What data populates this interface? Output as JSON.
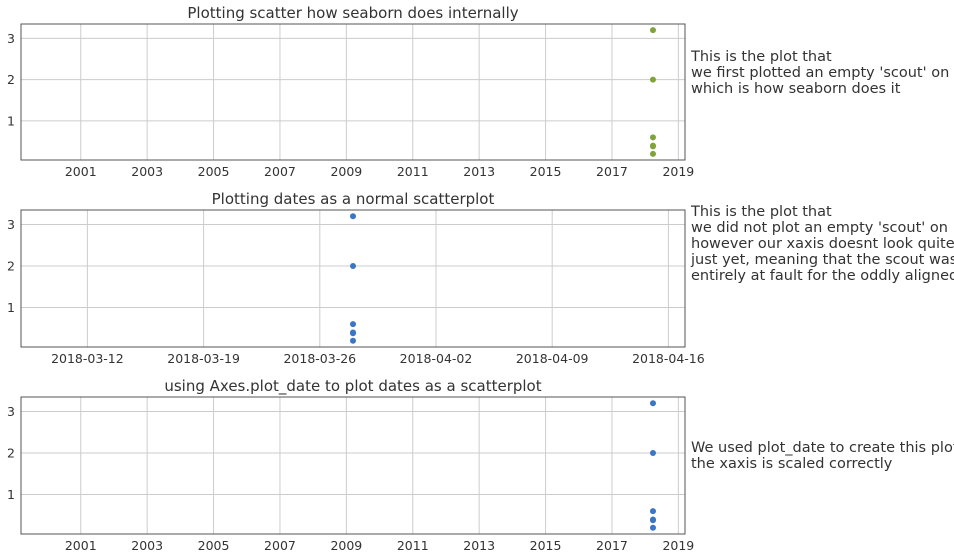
{
  "chart_data": [
    {
      "type": "scatter",
      "title": "Plotting scatter how seaborn does internally",
      "xlabel": "",
      "ylabel": "",
      "x_axis_type": "year",
      "xlim": [
        1999.2,
        2019.2
      ],
      "ylim": [
        0.05,
        3.35
      ],
      "x_ticks": [
        "2001",
        "2003",
        "2005",
        "2007",
        "2009",
        "2011",
        "2013",
        "2015",
        "2017",
        "2019"
      ],
      "y_ticks": [
        "1",
        "2",
        "3"
      ],
      "grid": true,
      "point_color": "#80a33c",
      "series": [
        {
          "x": [
            "2018-03-28",
            "2018-03-28",
            "2018-03-28",
            "2018-03-28",
            "2018-03-28",
            "2018-03-28"
          ],
          "y": [
            3.2,
            2.0,
            0.6,
            0.4,
            0.38,
            0.2
          ]
        }
      ],
      "annotation": [
        "This is the plot that",
        "we first plotted an empty 'scout' on",
        "which is how seaborn does it"
      ]
    },
    {
      "type": "scatter",
      "title": "Plotting dates as a normal scatterplot",
      "xlabel": "",
      "ylabel": "",
      "x_axis_type": "date",
      "xlim": [
        "2018-03-08",
        "2018-04-17"
      ],
      "ylim": [
        0.05,
        3.35
      ],
      "x_ticks": [
        "2018-03-12",
        "2018-03-19",
        "2018-03-26",
        "2018-04-02",
        "2018-04-09",
        "2018-04-16"
      ],
      "y_ticks": [
        "1",
        "2",
        "3"
      ],
      "grid": true,
      "point_color": "#3b76c4",
      "series": [
        {
          "x": [
            "2018-03-28",
            "2018-03-28",
            "2018-03-28",
            "2018-03-28",
            "2018-03-28",
            "2018-03-28"
          ],
          "y": [
            3.2,
            2.0,
            0.6,
            0.4,
            0.38,
            0.2
          ]
        }
      ],
      "annotation": [
        "This is the plot that",
        "we did not plot an empty 'scout' on",
        "however our xaxis doesnt look quite right",
        "just yet, meaning that the scout wasn't",
        "entirely at fault for the oddly aligned xaxis"
      ]
    },
    {
      "type": "scatter",
      "title": "using Axes.plot_date to plot dates as a scatterplot",
      "xlabel": "",
      "ylabel": "",
      "x_axis_type": "year",
      "xlim": [
        1999.2,
        2019.2
      ],
      "ylim": [
        0.05,
        3.35
      ],
      "x_ticks": [
        "2001",
        "2003",
        "2005",
        "2007",
        "2009",
        "2011",
        "2013",
        "2015",
        "2017",
        "2019"
      ],
      "y_ticks": [
        "1",
        "2",
        "3"
      ],
      "grid": true,
      "point_color": "#3b76c4",
      "series": [
        {
          "x": [
            "2018-03-28",
            "2018-03-28",
            "2018-03-28",
            "2018-03-28",
            "2018-03-28",
            "2018-03-28"
          ],
          "y": [
            3.2,
            2.0,
            0.6,
            0.4,
            0.38,
            0.2
          ]
        }
      ],
      "annotation": [
        "We used plot_date to create this plot",
        "the xaxis is scaled correctly"
      ]
    }
  ]
}
